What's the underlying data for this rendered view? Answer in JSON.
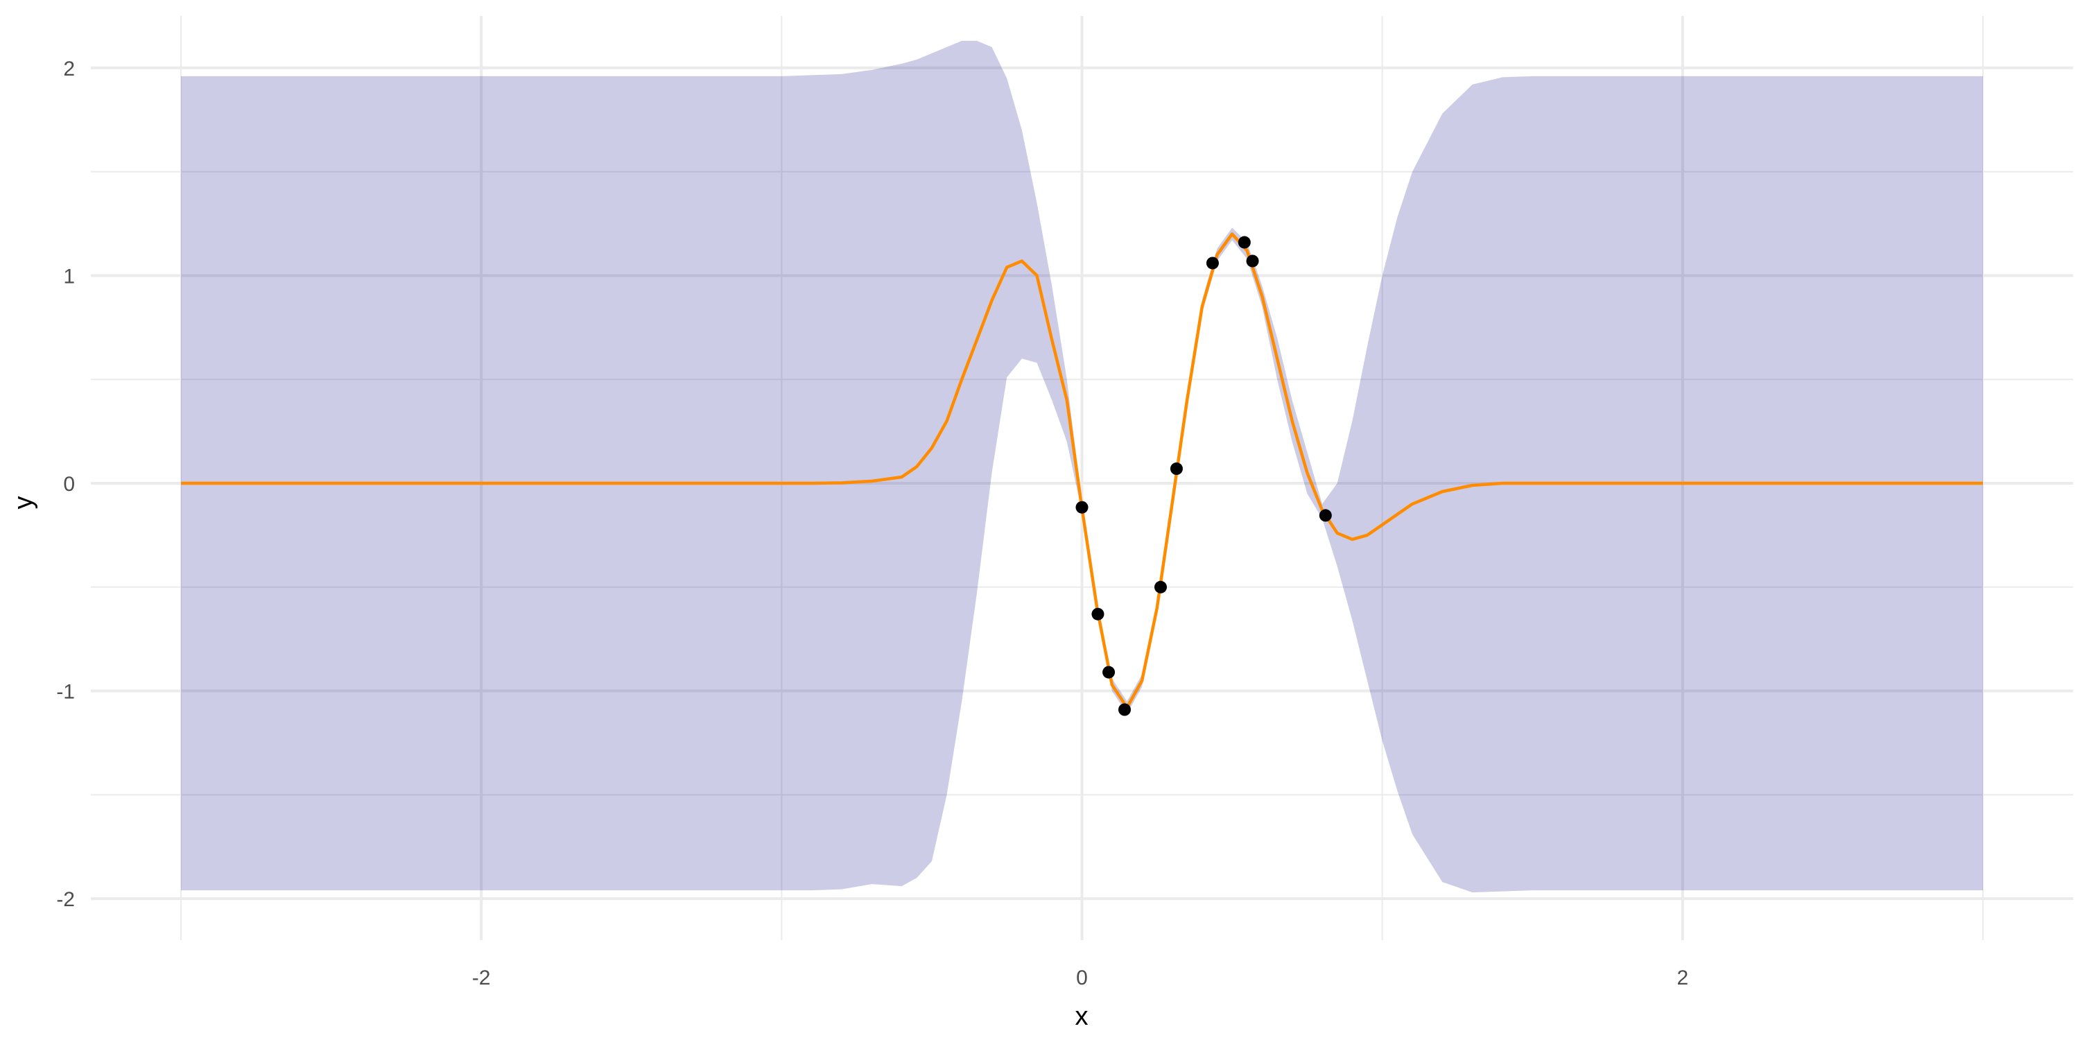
{
  "chart_data": {
    "type": "line",
    "title": "",
    "xlabel": "x",
    "ylabel": "y",
    "xlim": [
      -3.3,
      3.3
    ],
    "ylim": [
      -2.2,
      2.25
    ],
    "x_ticks": [
      -2,
      0,
      2
    ],
    "x_tick_labels": [
      "-2",
      "0",
      "2"
    ],
    "y_ticks": [
      -2,
      -1,
      0,
      1,
      2
    ],
    "y_tick_labels": [
      "-2",
      "-1",
      "0",
      "1",
      "2"
    ],
    "x_minor": [
      -3,
      -1,
      1,
      3
    ],
    "y_minor": [
      -1.5,
      -0.5,
      0.5,
      1.5
    ],
    "grid": true,
    "legend": "none",
    "colors": {
      "ribbon": "#000080",
      "ribbon_opacity": 0.2,
      "mean_line": "#ff8c00",
      "points": "#000000",
      "grid": "#ebebeb"
    },
    "band": {
      "x": [
        -3,
        -1.5,
        -1.0,
        -0.9,
        -0.8,
        -0.7,
        -0.6,
        -0.55,
        -0.5,
        -0.45,
        -0.4,
        -0.35,
        -0.3,
        -0.25,
        -0.2,
        -0.15,
        -0.1,
        -0.05,
        0,
        0.05,
        0.1,
        0.15,
        0.2,
        0.25,
        0.3,
        0.35,
        0.4,
        0.45,
        0.5,
        0.55,
        0.6,
        0.65,
        0.7,
        0.75,
        0.8,
        0.85,
        0.9,
        0.95,
        1.0,
        1.05,
        1.1,
        1.2,
        1.3,
        1.4,
        1.5,
        2.0,
        3.0
      ],
      "mean": [
        0,
        0,
        0,
        0,
        0.002,
        0.01,
        0.03,
        0.08,
        0.17,
        0.3,
        0.5,
        0.69,
        0.88,
        1.04,
        1.07,
        1.0,
        0.69,
        0.4,
        -0.12,
        -0.6,
        -0.97,
        -1.08,
        -0.95,
        -0.6,
        -0.1,
        0.4,
        0.85,
        1.1,
        1.2,
        1.12,
        0.9,
        0.6,
        0.3,
        0.05,
        -0.13,
        -0.24,
        -0.27,
        -0.25,
        -0.2,
        -0.15,
        -0.1,
        -0.04,
        -0.01,
        0,
        0,
        0,
        0
      ],
      "lower": [
        -1.96,
        -1.96,
        -1.96,
        -1.96,
        -1.955,
        -1.93,
        -1.94,
        -1.9,
        -1.82,
        -1.5,
        -1.05,
        -0.53,
        0.05,
        0.51,
        0.6,
        0.58,
        0.4,
        0.2,
        -0.14,
        -0.63,
        -1.0,
        -1.11,
        -0.98,
        -0.63,
        -0.13,
        0.37,
        0.82,
        1.07,
        1.17,
        1.08,
        0.85,
        0.5,
        0.2,
        -0.05,
        -0.17,
        -0.4,
        -0.66,
        -0.95,
        -1.24,
        -1.48,
        -1.69,
        -1.92,
        -1.97,
        -1.965,
        -1.96,
        -1.96,
        -1.96
      ],
      "upper": [
        1.96,
        1.96,
        1.96,
        1.965,
        1.97,
        1.99,
        2.02,
        2.04,
        2.07,
        2.1,
        2.13,
        2.13,
        2.1,
        1.95,
        1.7,
        1.35,
        0.95,
        0.5,
        -0.1,
        -0.57,
        -0.94,
        -1.05,
        -0.92,
        -0.57,
        -0.07,
        0.43,
        0.88,
        1.13,
        1.23,
        1.16,
        0.95,
        0.7,
        0.4,
        0.15,
        -0.1,
        0.0,
        0.3,
        0.66,
        1.0,
        1.28,
        1.5,
        1.78,
        1.92,
        1.955,
        1.96,
        1.96,
        1.96
      ]
    },
    "points": {
      "x": [
        0.0,
        0.053,
        0.089,
        0.142,
        0.262,
        0.315,
        0.435,
        0.541,
        0.568,
        0.811
      ],
      "y": [
        -0.116,
        -0.63,
        -0.91,
        -1.09,
        -0.5,
        0.07,
        1.06,
        1.16,
        1.07,
        -0.155
      ]
    }
  }
}
